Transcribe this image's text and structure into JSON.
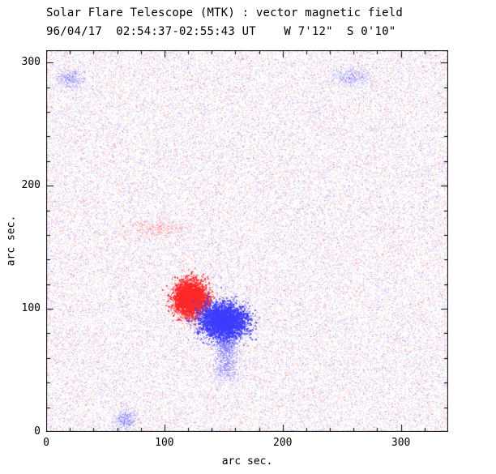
{
  "figure": {
    "background": "#ffffff",
    "frame_color": "#000000"
  },
  "chart_data": {
    "type": "heatmap",
    "title": "Solar Flare Telescope (MTK) : vector magnetic field",
    "subtitle": "96/04/17  02:54:37-02:55:43 UT    W 7'12\"  S 0'10\"",
    "xlabel": "arc sec.",
    "ylabel": "arc sec.",
    "xlim": [
      0,
      340
    ],
    "ylim": [
      0,
      310
    ],
    "xticks": [
      0,
      100,
      200,
      300
    ],
    "yticks": [
      0,
      100,
      200,
      300
    ],
    "minor_tick_step": 20,
    "legend": "none",
    "grid": false,
    "polarity_colors": {
      "positive": "#ff2828",
      "negative": "#3c3cff"
    },
    "noise": {
      "description": "uniform weak red/blue speckle over whole field of view",
      "density": 0.38,
      "alpha_min": 0.05,
      "alpha_max": 0.3
    },
    "features": [
      {
        "name": "positive-polarity-spot",
        "polarity": "positive",
        "x": 122,
        "y": 108,
        "sigma_x": 7,
        "sigma_y": 7,
        "strength": "strong"
      },
      {
        "name": "negative-polarity-spot",
        "polarity": "negative",
        "x": 150,
        "y": 90,
        "sigma_x": 10,
        "sigma_y": 7,
        "strength": "strong"
      },
      {
        "name": "negative-tail",
        "polarity": "negative",
        "x": 152,
        "y": 72,
        "sigma_x": 5,
        "sigma_y": 10,
        "strength": "moderate"
      },
      {
        "name": "positive-streak",
        "polarity": "positive",
        "x": 95,
        "y": 165,
        "sigma_x": 14,
        "sigma_y": 4,
        "strength": "faint"
      },
      {
        "name": "negative-patch-south",
        "polarity": "negative",
        "x": 152,
        "y": 50,
        "sigma_x": 6,
        "sigma_y": 5,
        "strength": "faint"
      },
      {
        "name": "negative-patch-northwest",
        "polarity": "negative",
        "x": 20,
        "y": 287,
        "sigma_x": 6,
        "sigma_y": 4,
        "strength": "faint"
      },
      {
        "name": "negative-patch-northeast",
        "polarity": "negative",
        "x": 258,
        "y": 288,
        "sigma_x": 8,
        "sigma_y": 4,
        "strength": "faint"
      },
      {
        "name": "negative-speck-southwest",
        "polarity": "negative",
        "x": 67,
        "y": 10,
        "sigma_x": 5,
        "sigma_y": 4,
        "strength": "faint"
      }
    ]
  }
}
